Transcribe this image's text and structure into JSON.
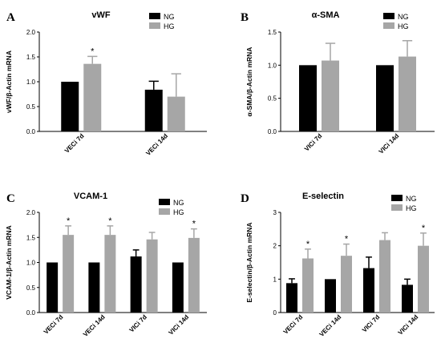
{
  "colors": {
    "NG": "#000000",
    "HG": "#a6a6a6"
  },
  "chart_data": [
    {
      "panel": "A",
      "type": "bar",
      "title": "vWF",
      "ylabel": "vWF/β-Actin mRNA",
      "ylim": [
        0,
        2.0
      ],
      "yticks": [
        "0.0",
        "0.5",
        "1.0",
        "1.5",
        "2.0"
      ],
      "categories": [
        "VECi 7d",
        "VECi 14d"
      ],
      "series": [
        {
          "name": "NG",
          "values": [
            1.0,
            0.84
          ],
          "errors": [
            0,
            0.17
          ]
        },
        {
          "name": "HG",
          "values": [
            1.36,
            0.7
          ],
          "errors": [
            0.15,
            0.46
          ]
        }
      ],
      "significance": [
        {
          "category": 0,
          "series": 1,
          "label": "*"
        }
      ],
      "legend": "top-right"
    },
    {
      "panel": "B",
      "type": "bar",
      "title": "α-SMA",
      "ylabel": "α-SMA/β-Actin mRNA",
      "ylim": [
        0,
        1.5
      ],
      "yticks": [
        "0.0",
        "0.5",
        "1.0",
        "1.5"
      ],
      "categories": [
        "VICi 7d",
        "VICi 14d"
      ],
      "series": [
        {
          "name": "NG",
          "values": [
            1.0,
            1.0
          ],
          "errors": [
            0,
            0
          ]
        },
        {
          "name": "HG",
          "values": [
            1.07,
            1.13
          ],
          "errors": [
            0.26,
            0.24
          ]
        }
      ],
      "significance": [],
      "legend": "top-right"
    },
    {
      "panel": "C",
      "type": "bar",
      "title": "VCAM-1",
      "ylabel": "VCAM-1/β-Actin mRNA",
      "ylim": [
        0,
        2.0
      ],
      "yticks": [
        "0.0",
        "0.5",
        "1.0",
        "1.5",
        "2.0"
      ],
      "categories": [
        "VECi 7d",
        "VECi 14d",
        "VICi 7d",
        "VICi 14d"
      ],
      "series": [
        {
          "name": "NG",
          "values": [
            1.0,
            1.0,
            1.12,
            1.0
          ],
          "errors": [
            0,
            0,
            0.13,
            0
          ]
        },
        {
          "name": "HG",
          "values": [
            1.55,
            1.55,
            1.46,
            1.49
          ],
          "errors": [
            0.18,
            0.18,
            0.14,
            0.18
          ]
        }
      ],
      "significance": [
        {
          "category": 0,
          "series": 1,
          "label": "*"
        },
        {
          "category": 1,
          "series": 1,
          "label": "*"
        },
        {
          "category": 3,
          "series": 1,
          "label": "*"
        }
      ],
      "legend": "top-right"
    },
    {
      "panel": "D",
      "type": "bar",
      "title": "E-selectin",
      "ylabel": "E-selectin/β-Actin mRNA",
      "ylim": [
        0,
        3
      ],
      "yticks": [
        "0",
        "1",
        "2",
        "3"
      ],
      "categories": [
        "VECi 7d",
        "VECi 14d",
        "VICi 7d",
        "VICi 14d"
      ],
      "series": [
        {
          "name": "NG",
          "values": [
            0.88,
            1.0,
            1.33,
            0.83
          ],
          "errors": [
            0.13,
            0,
            0.33,
            0.17
          ]
        },
        {
          "name": "HG",
          "values": [
            1.62,
            1.7,
            2.17,
            2.0
          ],
          "errors": [
            0.28,
            0.35,
            0.22,
            0.38
          ]
        }
      ],
      "significance": [
        {
          "category": 0,
          "series": 1,
          "label": "*"
        },
        {
          "category": 1,
          "series": 1,
          "label": "*"
        },
        {
          "category": 3,
          "series": 1,
          "label": "*"
        }
      ],
      "legend": "top-right"
    }
  ]
}
